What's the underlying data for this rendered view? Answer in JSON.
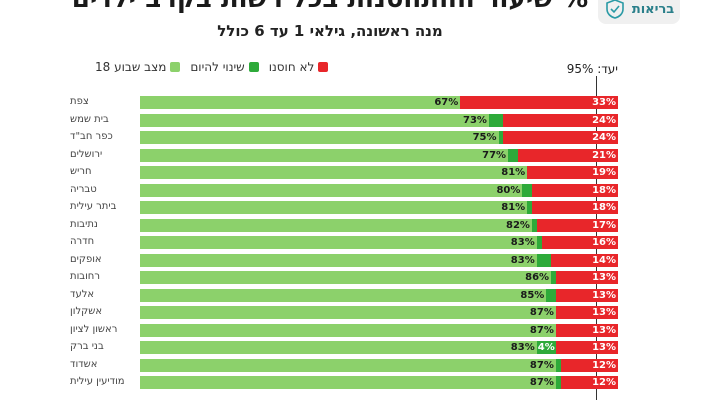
{
  "header": {
    "title": "% שיעור ההתחסנות בכל רשות בקרב ילדים",
    "subtitle": "מנה ראשונה, גילאי 1 עד 6 כולל",
    "brand_name": "בריאות"
  },
  "legend": {
    "base_label": "מצב שבוע 18",
    "today_label": "שינוי להיום",
    "unvaccinated_label": "לא חוסנו"
  },
  "target_label": "יעד: 95%",
  "colors": {
    "base": "#8cd16b",
    "today": "#2eaa3a",
    "unvaccinated": "#e8262a"
  },
  "chart_data": {
    "type": "bar",
    "orientation": "horizontal-stacked",
    "title": "% שיעור ההתחסנות בכל רשות בקרב ילדים",
    "subtitle": "מנה ראשונה, גילאי 1 עד 6 כולל",
    "xlim": [
      0,
      100
    ],
    "target": 95,
    "categories": [
      "צפת",
      "בית שמש",
      "כפר חב\"ד",
      "ירושלים",
      "חריש",
      "טבריה",
      "ביתר עילית",
      "נתיבות",
      "חדרה",
      "אופקים",
      "רחובות",
      "אלעד",
      "אשקלון",
      "ראשון לציון",
      "בני ברק",
      "אשדוד",
      "מודיעין עילית"
    ],
    "series": [
      {
        "name": "מצב שבוע 18",
        "values": [
          67,
          73,
          75,
          77,
          81,
          80,
          81,
          82,
          83,
          83,
          86,
          85,
          87,
          87,
          83,
          87,
          87
        ],
        "labels": [
          "67%",
          "73%",
          "75%",
          "77%",
          "81%",
          "80%",
          "81%",
          "82%",
          "83%",
          "83%",
          "86%",
          "85%",
          "87%",
          "87%",
          "83%",
          "87%",
          "87%"
        ]
      },
      {
        "name": "שינוי להיום",
        "values": [
          0,
          3,
          1,
          2,
          0,
          2,
          1,
          1,
          1,
          3,
          1,
          2,
          0,
          0,
          4,
          1,
          1
        ],
        "labels": [
          "",
          "",
          "",
          "",
          "",
          "",
          "",
          "",
          "",
          "",
          "",
          "",
          "",
          "",
          "4%",
          "",
          ""
        ]
      },
      {
        "name": "לא חוסנו",
        "values": [
          33,
          24,
          24,
          21,
          19,
          18,
          18,
          17,
          16,
          14,
          13,
          13,
          13,
          13,
          13,
          12,
          12
        ],
        "labels": [
          "33%",
          "24%",
          "24%",
          "21%",
          "19%",
          "18%",
          "18%",
          "17%",
          "16%",
          "14%",
          "13%",
          "13%",
          "13%",
          "13%",
          "13%",
          "12%",
          "12%"
        ]
      }
    ]
  }
}
